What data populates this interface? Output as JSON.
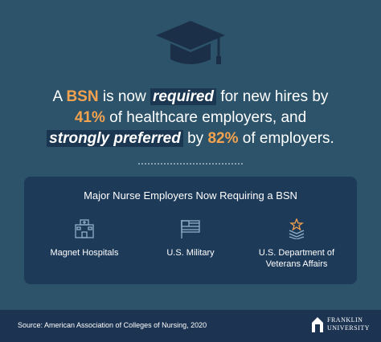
{
  "headline": {
    "lines": [
      [
        "A",
        "BSN",
        "is now",
        "required",
        "for new hires by"
      ],
      [
        "41%",
        "of healthcare employers, and"
      ],
      [
        "strongly preferred",
        "by",
        "82%",
        "of employers."
      ]
    ]
  },
  "panel": {
    "title": "Major Nurse Employers Now Requiring a BSN",
    "employers": [
      {
        "label": [
          "Magnet Hospitals"
        ]
      },
      {
        "label": [
          "U.S. Military"
        ]
      },
      {
        "label": [
          "U.S. Department of",
          "Veterans Affairs"
        ]
      }
    ]
  },
  "footer": {
    "source": "Source: American Association of Colleges of Nursing, 2020",
    "logo": [
      "FRANKLIN",
      "UNIVERSITY"
    ]
  }
}
